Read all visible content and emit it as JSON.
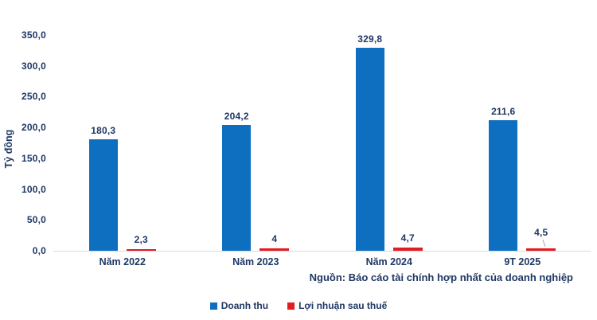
{
  "chart_data": {
    "type": "bar",
    "title": "",
    "categories": [
      "Năm 2022",
      "Năm 2023",
      "Năm 2024",
      "9T 2025"
    ],
    "series": [
      {
        "name": "Doanh thu",
        "color": "#0E6FC0",
        "values": [
          180.3,
          204.2,
          329.8,
          211.6
        ],
        "labels": [
          "180,3",
          "204,2",
          "329,8",
          "211,6"
        ]
      },
      {
        "name": "Lợi nhuận sau thuế",
        "color": "#E31B23",
        "values": [
          2.3,
          4,
          4.7,
          4.5
        ],
        "labels": [
          "2,3",
          "4",
          "4,7",
          "4,5"
        ]
      }
    ],
    "xlabel": "",
    "ylabel": "Tỷ đồng",
    "ylim": [
      0,
      350
    ],
    "yticks": [
      {
        "value": 0,
        "label": "0,0"
      },
      {
        "value": 50,
        "label": "50,0"
      },
      {
        "value": 100,
        "label": "100,0"
      },
      {
        "value": 150,
        "label": "150,0"
      },
      {
        "value": 200,
        "label": "200,0"
      },
      {
        "value": 250,
        "label": "250,0"
      },
      {
        "value": 300,
        "label": "300,0"
      },
      {
        "value": 350,
        "label": "350,0"
      }
    ],
    "grid": false,
    "legend_position": "bottom",
    "callouts": [
      {
        "series": 1,
        "index": 3
      }
    ],
    "source_note": "Nguồn: Báo cáo tài chính hợp nhất của doanh nghiệp"
  },
  "colors": {
    "text_navy": "#1F3864",
    "bar_blue": "#0E6FC0",
    "bar_red": "#E31B23",
    "axis_line": "#D9D9D9",
    "background": "#FFFFFF"
  }
}
